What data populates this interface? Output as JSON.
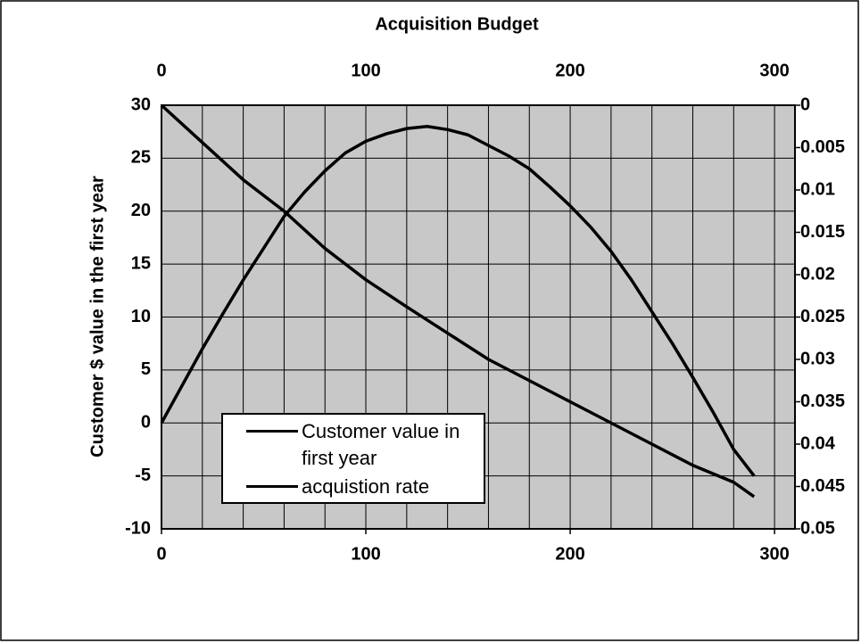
{
  "chart_data": {
    "type": "line",
    "title": "Acquisition Budget",
    "ylabel": "Customer $ value in the first year",
    "xlim": [
      0,
      310
    ],
    "xticks": [
      0,
      100,
      200,
      300
    ],
    "xgrid": [
      0,
      20,
      40,
      60,
      80,
      100,
      120,
      140,
      160,
      180,
      200,
      220,
      240,
      260,
      280,
      300
    ],
    "x2ticks": [
      0,
      100,
      200,
      300
    ],
    "ylim": [
      -10,
      30
    ],
    "yticks": [
      -10,
      -5,
      0,
      5,
      10,
      15,
      20,
      25,
      30
    ],
    "y2lim": [
      0.05,
      0
    ],
    "y2ticks": [
      0,
      0.005,
      0.01,
      0.015,
      0.02,
      0.025,
      0.03,
      0.035,
      0.04,
      0.045,
      0.05
    ],
    "grid": true,
    "background": "#c8c8c8",
    "series": [
      {
        "name": "Customer value in first year",
        "color": "#000000",
        "x": [
          0,
          10,
          20,
          30,
          40,
          50,
          60,
          70,
          80,
          90,
          100,
          110,
          120,
          130,
          140,
          150,
          160,
          170,
          180,
          190,
          200,
          210,
          220,
          230,
          240,
          250,
          260,
          270,
          280,
          290
        ],
        "values": [
          0,
          3.5,
          7,
          10.3,
          13.5,
          16.5,
          19.5,
          21.8,
          23.8,
          25.5,
          26.6,
          27.3,
          27.8,
          28,
          27.7,
          27.2,
          26.2,
          25.2,
          24,
          22.3,
          20.5,
          18.5,
          16.2,
          13.5,
          10.5,
          7.5,
          4.3,
          1,
          -2.5,
          -5
        ]
      },
      {
        "name": "acquistion rate",
        "color": "#000000",
        "axis": "y2",
        "x": [
          0,
          20,
          40,
          60,
          80,
          100,
          120,
          140,
          160,
          180,
          200,
          220,
          240,
          260,
          280,
          290
        ],
        "values": [
          0,
          0.0044,
          0.0088,
          0.0125,
          0.0169,
          0.0206,
          0.0238,
          0.0269,
          0.03,
          0.0325,
          0.035,
          0.0375,
          0.04,
          0.0425,
          0.0445,
          0.0462
        ]
      }
    ]
  }
}
